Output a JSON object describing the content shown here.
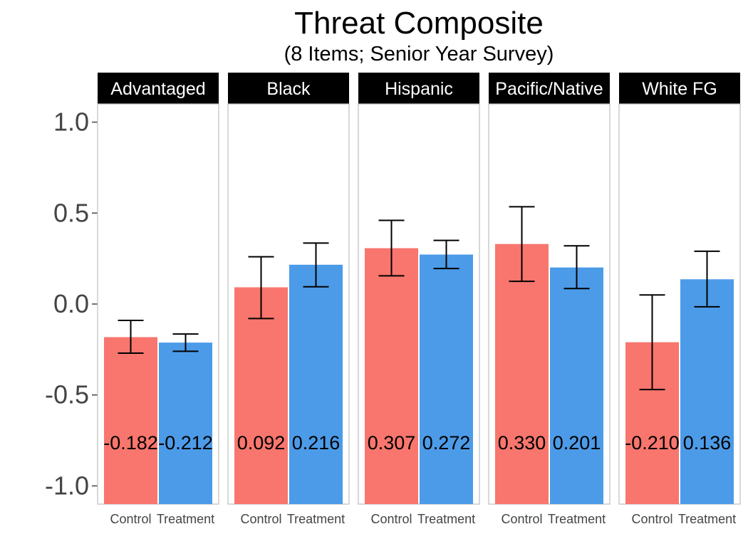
{
  "chart_data": {
    "type": "bar",
    "title": "Threat Composite",
    "subtitle": "(8 Items; Senior Year Survey)",
    "xlabel": "",
    "ylabel": "",
    "ylim": [
      -1.1,
      1.1
    ],
    "yticks": [
      1.0,
      0.5,
      0.0,
      -0.5,
      -1.0
    ],
    "ytick_labels": [
      "1.0",
      "0.5",
      "0.0",
      "-0.5",
      "-1.0"
    ],
    "grid": false,
    "legend": "none",
    "categories": [
      "Control",
      "Treatment"
    ],
    "colors": {
      "Control": "#F8766D",
      "Treatment": "#4C9BE8",
      "strip": "#000000"
    },
    "panels": [
      {
        "name": "Advantaged",
        "values": [
          -0.182,
          -0.212
        ],
        "labels": [
          "-0.182",
          "-0.212"
        ],
        "err_low": [
          -0.27,
          -0.26
        ],
        "err_high": [
          -0.09,
          -0.165
        ]
      },
      {
        "name": "Black",
        "values": [
          0.092,
          0.216
        ],
        "labels": [
          "0.092",
          "0.216"
        ],
        "err_low": [
          -0.08,
          0.095
        ],
        "err_high": [
          0.26,
          0.335
        ]
      },
      {
        "name": "Hispanic",
        "values": [
          0.307,
          0.272
        ],
        "labels": [
          "0.307",
          "0.272"
        ],
        "err_low": [
          0.155,
          0.195
        ],
        "err_high": [
          0.46,
          0.35
        ]
      },
      {
        "name": "Pacific/Native",
        "values": [
          0.33,
          0.201
        ],
        "labels": [
          "0.330",
          "0.201"
        ],
        "err_low": [
          0.125,
          0.085
        ],
        "err_high": [
          0.535,
          0.32
        ]
      },
      {
        "name": "White FG",
        "values": [
          -0.21,
          0.136
        ],
        "labels": [
          "-0.210",
          "0.136"
        ],
        "err_low": [
          -0.47,
          -0.015
        ],
        "err_high": [
          0.05,
          0.29
        ]
      }
    ],
    "value_label_y": -0.76
  }
}
